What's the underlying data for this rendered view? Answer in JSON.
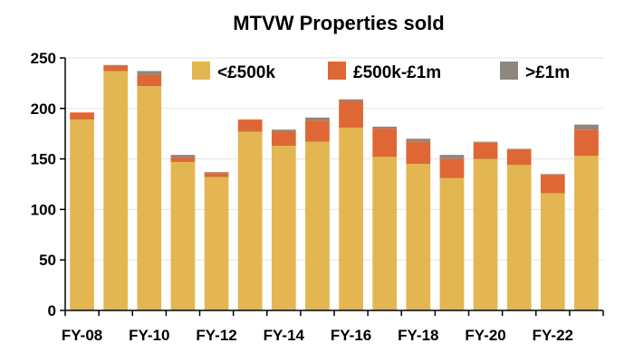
{
  "chart_data": {
    "type": "bar",
    "stacked": true,
    "title": "MTVW Properties sold",
    "xlabel": "",
    "ylabel": "",
    "ylim": [
      0,
      250
    ],
    "yticks": [
      0,
      50,
      100,
      150,
      200,
      250
    ],
    "grid": true,
    "legend_position": "top-right",
    "categories": [
      "FY-08",
      "FY-09",
      "FY-10",
      "FY-11",
      "FY-12",
      "FY-13",
      "FY-14",
      "FY-15",
      "FY-16",
      "FY-17",
      "FY-18",
      "FY-19",
      "FY-20",
      "FY-21",
      "FY-22",
      "FY-23"
    ],
    "xtick_labels": [
      "FY-08",
      "",
      "FY-10",
      "",
      "FY-12",
      "",
      "FY-14",
      "",
      "FY-16",
      "",
      "FY-18",
      "",
      "FY-20",
      "",
      "FY-22",
      ""
    ],
    "series": [
      {
        "name": "<£500k",
        "color": "#E3B651",
        "values": [
          189,
          237,
          222,
          147,
          132,
          177,
          163,
          167,
          181,
          152,
          145,
          131,
          150,
          144,
          116,
          153
        ]
      },
      {
        "name": "£500k-£1m",
        "color": "#DE6735",
        "values": [
          7,
          5,
          11,
          4,
          4,
          12,
          14,
          21,
          26,
          28,
          22,
          19,
          16,
          15,
          18,
          26
        ]
      },
      {
        "name": ">£1m",
        "color": "#8E8780",
        "values": [
          0,
          1,
          4,
          3,
          1,
          0,
          2,
          3,
          2,
          2,
          3,
          4,
          1,
          1,
          1,
          5
        ]
      }
    ]
  }
}
